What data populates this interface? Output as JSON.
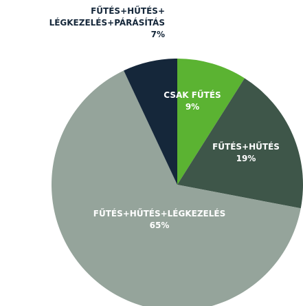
{
  "chart_data": {
    "type": "pie",
    "categories": [
      "CSAK FŰTÉS",
      "FŰTÉS+HŰTÉS",
      "FŰTÉS+HŰTÉS+LÉGKEZELÉS",
      "FŰTÉS+HŰTÉS+\nLÉGKEZELÉS+PÁRÁSÍTÁS"
    ],
    "values": [
      9,
      19,
      65,
      7
    ],
    "value_labels": [
      "9%",
      "19%",
      "65%",
      "7%"
    ],
    "colors": [
      "#5bb332",
      "#3e5649",
      "#95a49b",
      "#15273a"
    ]
  }
}
